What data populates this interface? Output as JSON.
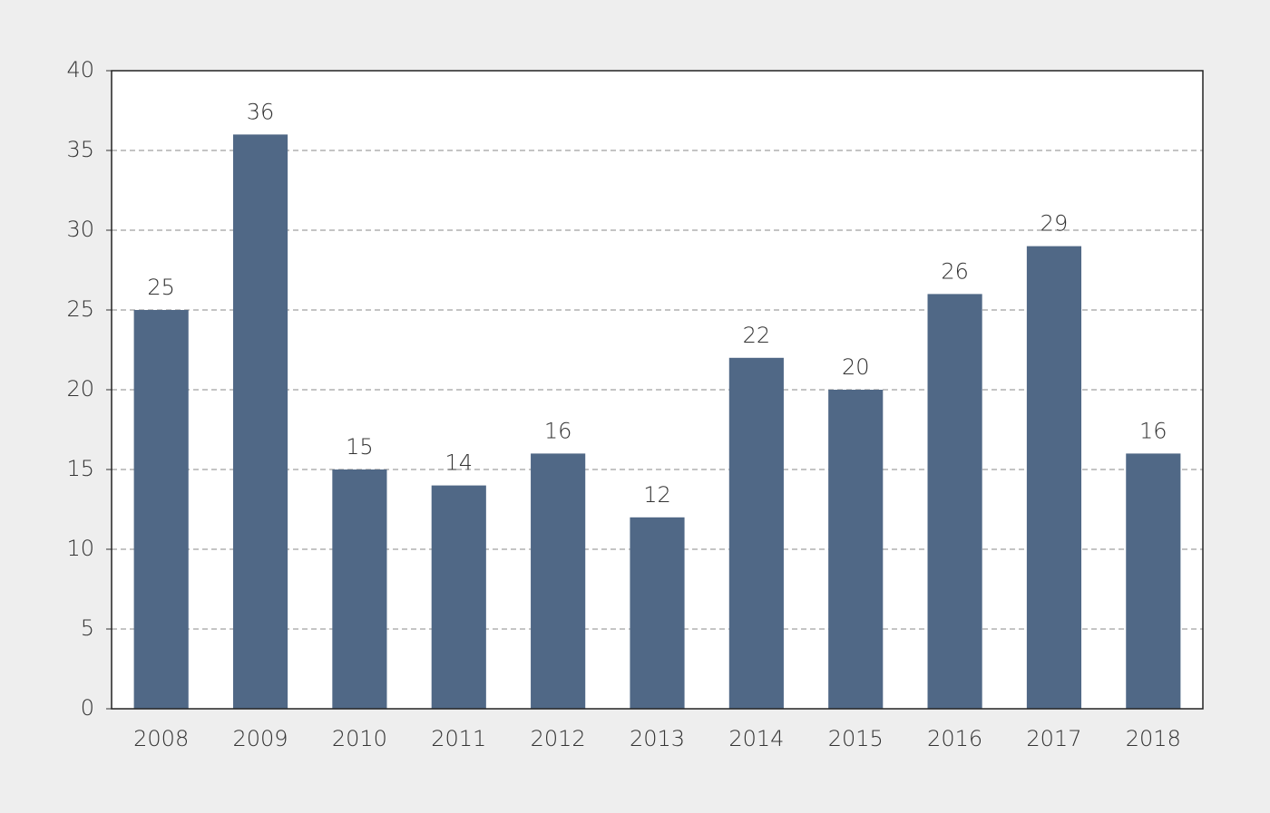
{
  "chart_data": {
    "type": "bar",
    "categories": [
      "2008",
      "2009",
      "2010",
      "2011",
      "2012",
      "2013",
      "2014",
      "2015",
      "2016",
      "2017",
      "2018"
    ],
    "values": [
      25,
      36,
      15,
      14,
      16,
      12,
      22,
      20,
      26,
      29,
      16
    ],
    "color": "#506886",
    "ylim": [
      0,
      40
    ],
    "yticks": [
      0,
      5,
      10,
      15,
      20,
      25,
      30,
      35,
      40
    ],
    "grid": true
  }
}
